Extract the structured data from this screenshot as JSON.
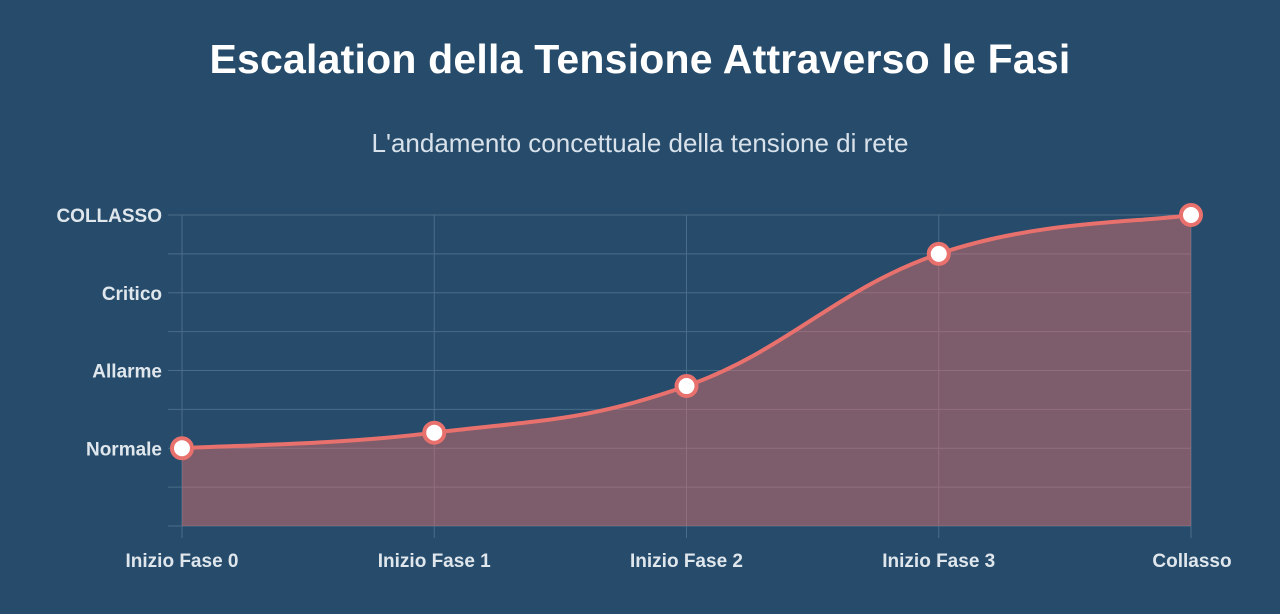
{
  "header": {
    "title": "Escalation della Tensione Attraverso le Fasi",
    "subtitle": "L'andamento concettuale della tensione di rete"
  },
  "colors": {
    "background": "#264b6b",
    "line": "#e8716d",
    "fill": "#e8716d",
    "grid": "#4a6c89",
    "point_fill": "#ffffff"
  },
  "chart_data": {
    "type": "area",
    "title": "Escalation della Tensione Attraverso le Fasi",
    "subtitle": "L'andamento concettuale della tensione di rete",
    "categories": [
      "Inizio Fase 0",
      "Inizio Fase 1",
      "Inizio Fase 2",
      "Inizio Fase 3",
      "Collasso"
    ],
    "series": [
      {
        "values": [
          1.0,
          1.2,
          1.8,
          3.5,
          4.0
        ]
      }
    ],
    "ylim": [
      0,
      4
    ],
    "y_tick_values": [
      1,
      2,
      3,
      4
    ],
    "y_tick_labels": [
      "Normale",
      "Allarme",
      "Critico",
      "COLLASSO"
    ],
    "y_minor_step": 0.5,
    "grid": true,
    "legend": "none"
  }
}
